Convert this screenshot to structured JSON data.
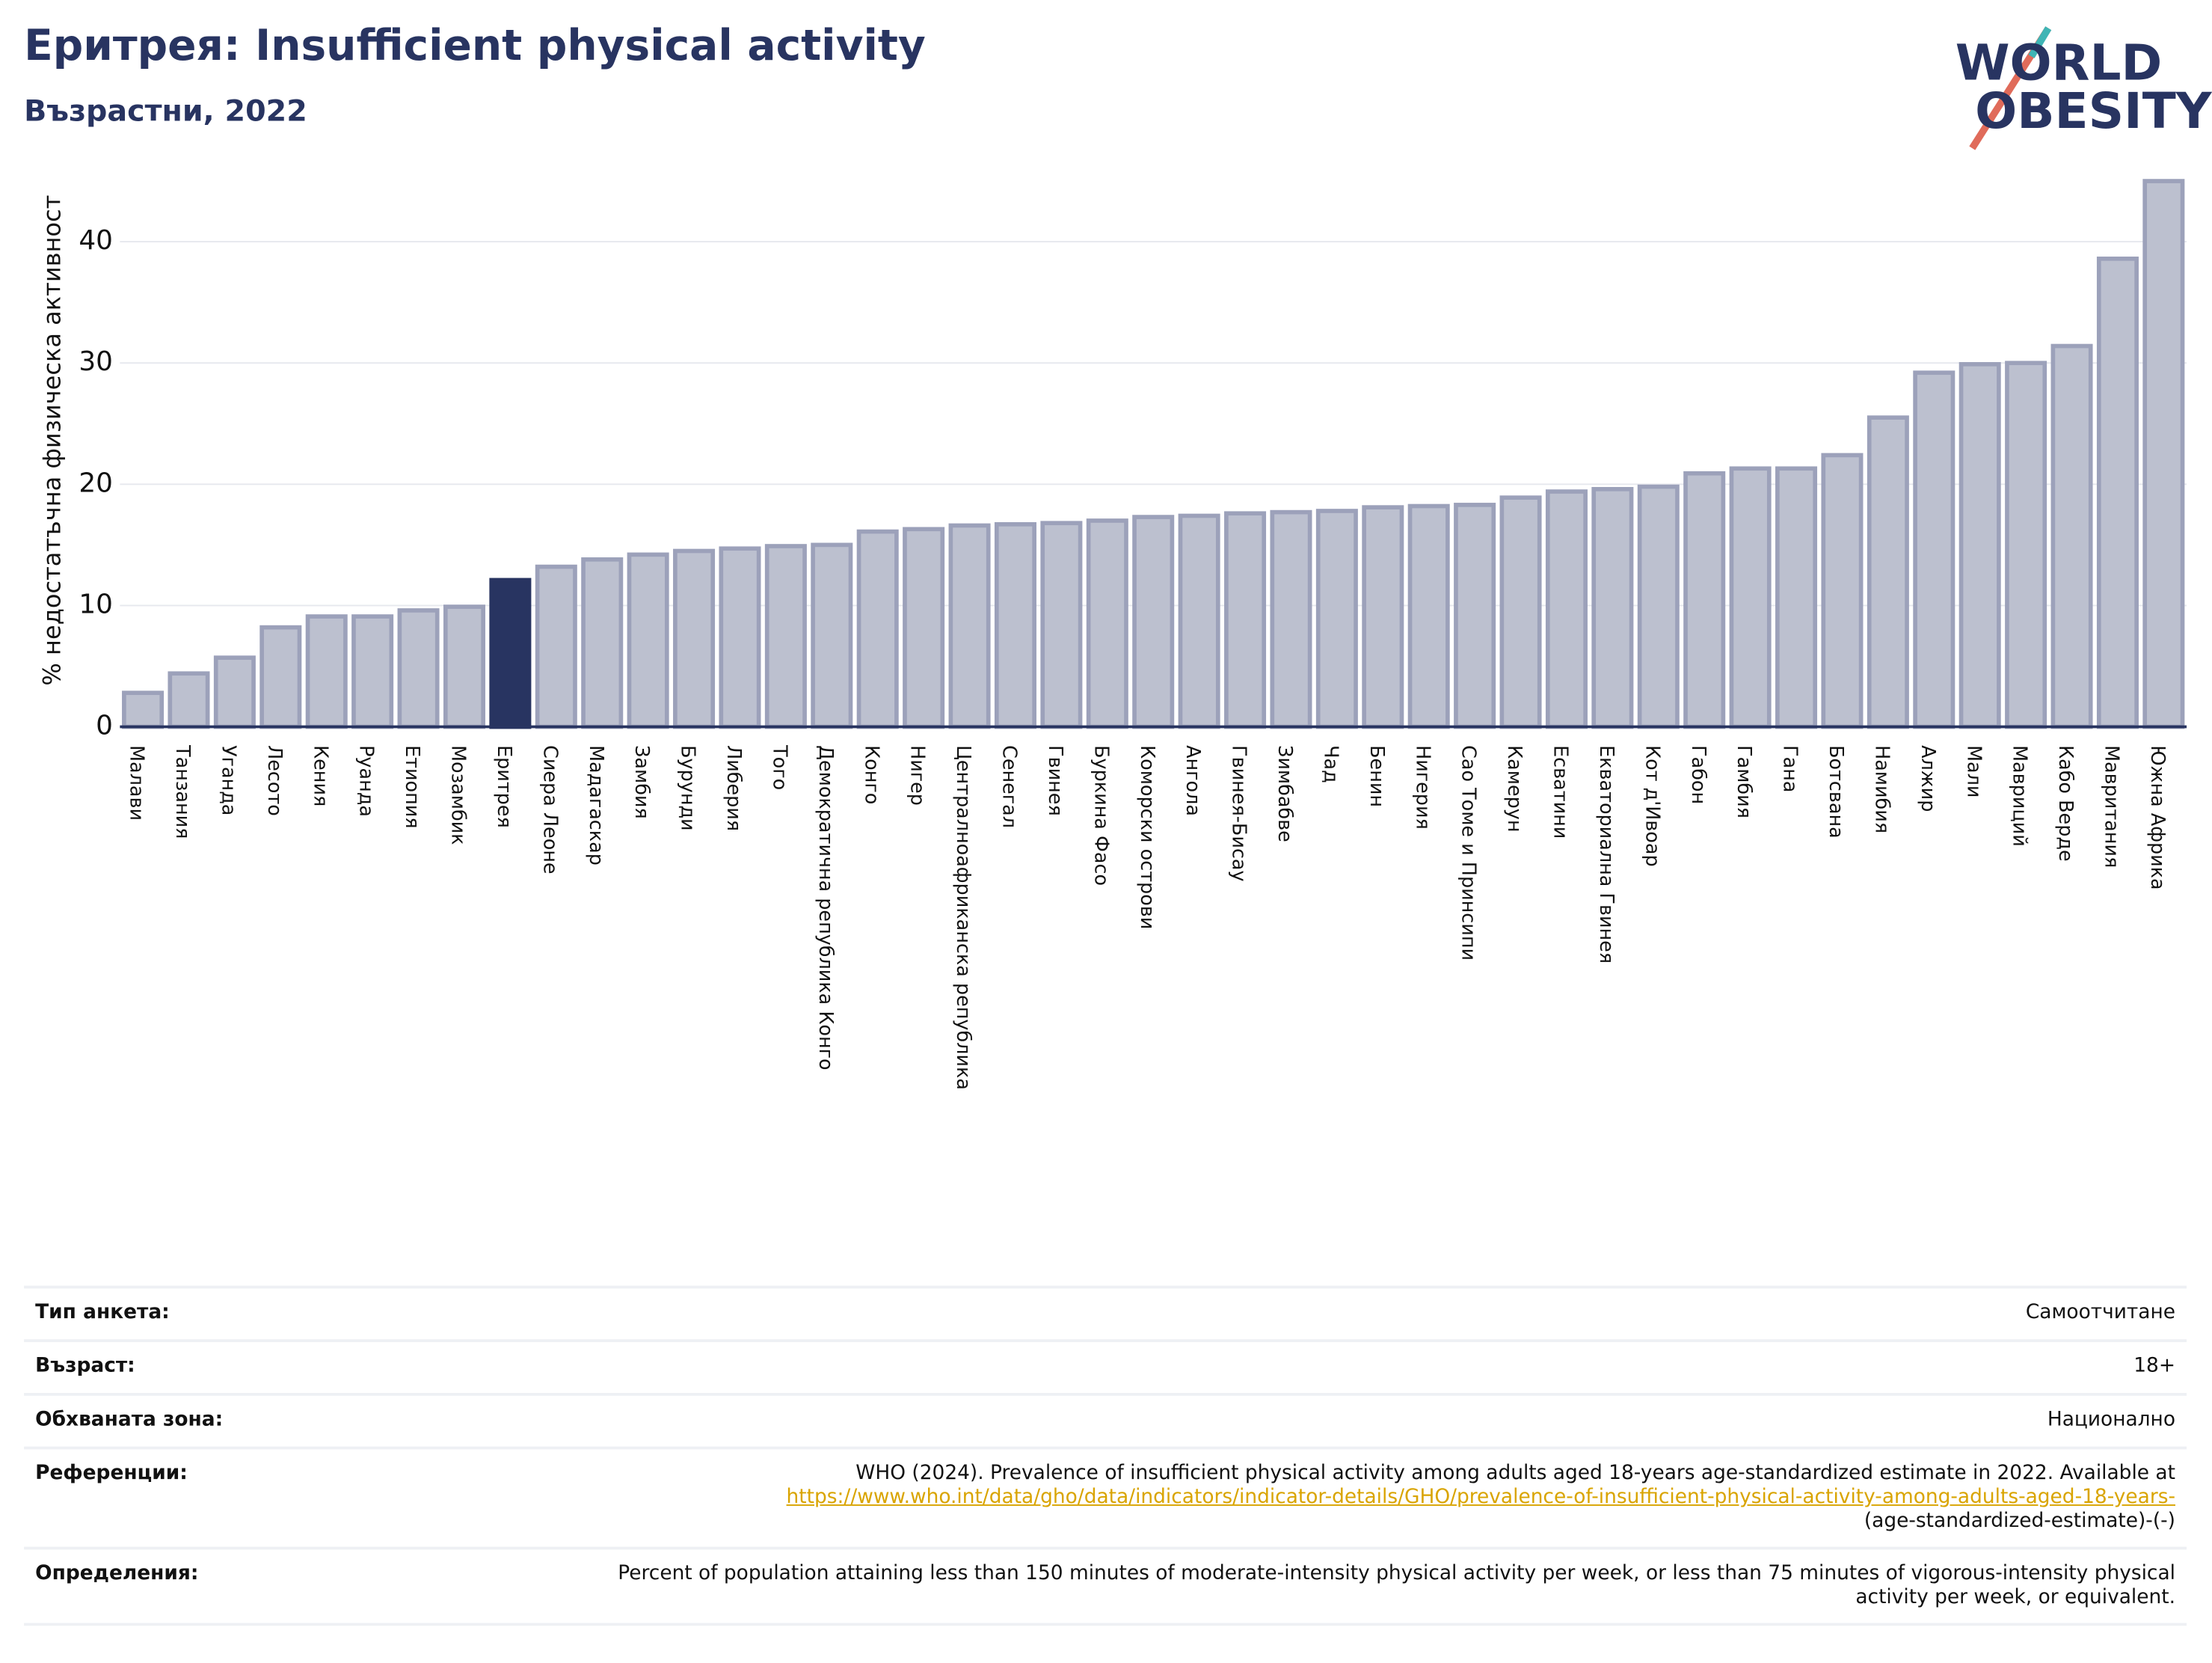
{
  "header": {
    "title": "Еритрея: Insufficient physical activity",
    "subtitle": "Възрастни, 2022",
    "logo": {
      "line1": "WORLD",
      "line2": "OBESITY"
    }
  },
  "chart_data": {
    "type": "bar",
    "y_label": "% недостатъчна физическа активност",
    "categories": [
      "Малави",
      "Танзания",
      "Уганда",
      "Лесото",
      "Кения",
      "Руанда",
      "Етиопия",
      "Мозамбик",
      "Еритрея",
      "Сиера Леоне",
      "Мадагаскар",
      "Замбия",
      "Бурунди",
      "Либерия",
      "Того",
      "Демократична република Конго",
      "Конго",
      "Нигер",
      "Централноафриканска република",
      "Сенегал",
      "Гвинея",
      "Буркина Фасо",
      "Коморски острови",
      "Ангола",
      "Гвинея-Бисау",
      "Зимбабве",
      "Чад",
      "Бенин",
      "Нигерия",
      "Сао Томе и Принсипи",
      "Камерун",
      "Есватини",
      "Екваториална Гвинея",
      "Кот д'Ивоар",
      "Габон",
      "Гамбия",
      "Гана",
      "Ботсвана",
      "Намибия",
      "Алжир",
      "Мали",
      "Мавриций",
      "Кабо Верде",
      "Мавритания",
      "Южна Африка"
    ],
    "values": [
      2.8,
      4.4,
      5.7,
      8.2,
      9.1,
      9.1,
      9.6,
      9.9,
      12.1,
      13.2,
      13.8,
      14.2,
      14.5,
      14.7,
      14.9,
      15.0,
      16.1,
      16.3,
      16.6,
      16.7,
      16.8,
      17.0,
      17.3,
      17.4,
      17.6,
      17.7,
      17.8,
      18.1,
      18.2,
      18.3,
      18.9,
      19.4,
      19.6,
      19.8,
      20.9,
      21.3,
      21.3,
      22.4,
      25.5,
      29.2,
      29.9,
      30.0,
      31.4,
      38.6,
      45.0
    ],
    "color": "#bcc0cf",
    "highlight_category": "Еритрея",
    "highlight_color": "#283461",
    "ylim": [
      0,
      46.2
    ],
    "yticks": [
      0,
      10,
      20,
      30,
      40
    ],
    "grid": true
  },
  "table": {
    "rows": [
      {
        "label": "Тип анкета:",
        "value": "Самоотчитане"
      },
      {
        "label": "Възраст:",
        "value": "18+"
      },
      {
        "label": "Обхваната зона:",
        "value": "Национално"
      },
      {
        "label": "Референции:",
        "value": {
          "text": "WHO (2024). Prevalence of insufficient physical activity among adults aged 18-years age-standardized estimate in 2022. Available at",
          "link": "https://www.who.int/data/gho/data/indicators/indicator-details/GHO/prevalence-of-insufficient-physical-activity-among-adults-aged-18-years-",
          "tail": "(age-standardized-estimate)-(-)"
        }
      },
      {
        "label": "Определения:",
        "value": "Percent of population attaining less than 150 minutes of moderate-intensity physical activity per week, or less than 75 minutes of vigorous-intensity physical activity per week, or equivalent."
      }
    ]
  }
}
